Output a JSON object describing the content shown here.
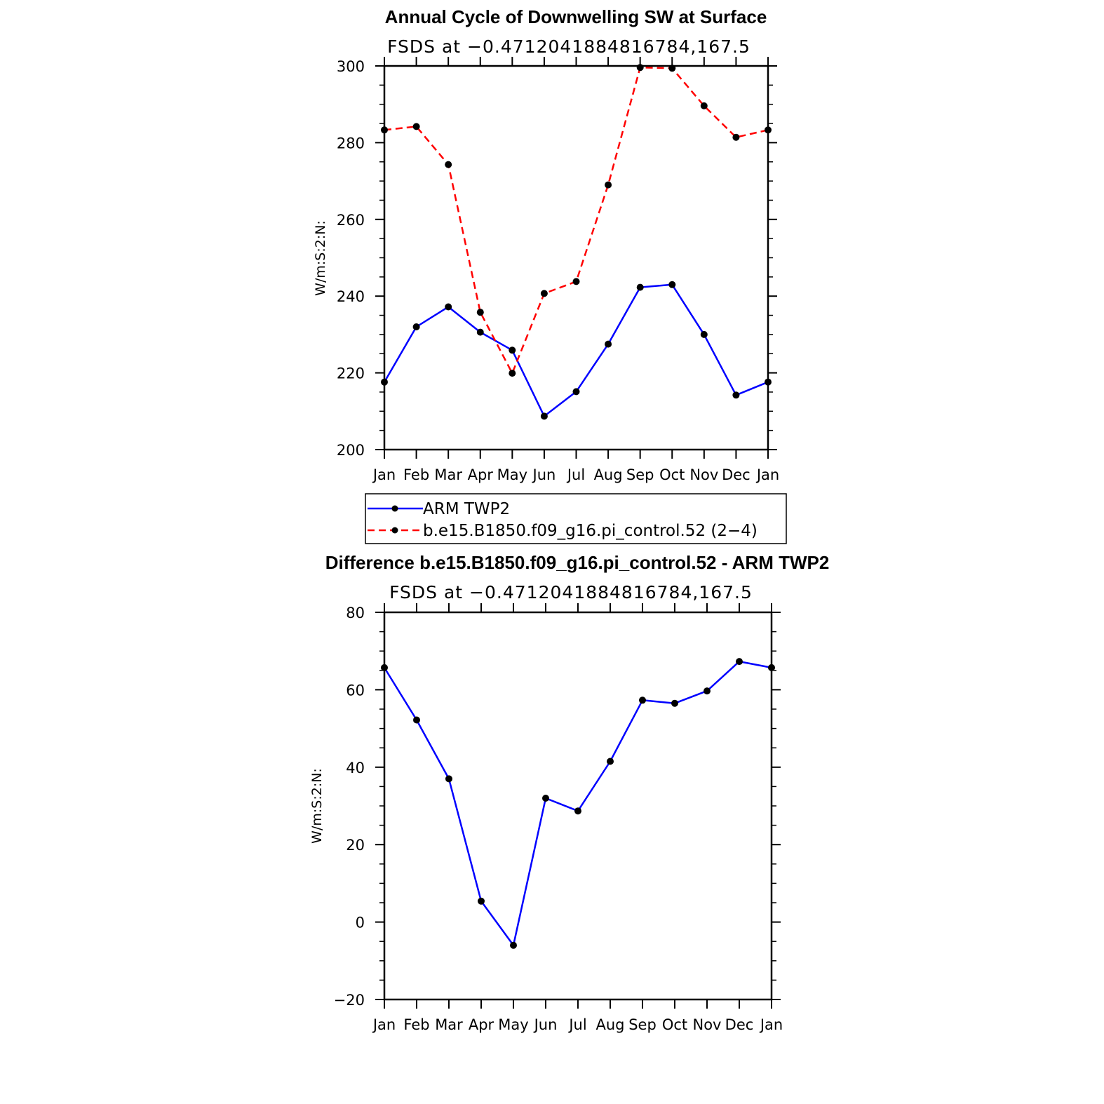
{
  "chart_data": [
    {
      "type": "line",
      "title": "Annual Cycle of Downwelling SW at Surface",
      "subtitle": "FSDS at −0.4712041884816784,167.5",
      "xlabel": "",
      "ylabel": "W/m:S:2:N:",
      "categories": [
        "Jan",
        "Feb",
        "Mar",
        "Apr",
        "May",
        "Jun",
        "Jul",
        "Aug",
        "Sep",
        "Oct",
        "Nov",
        "Dec",
        "Jan"
      ],
      "ylim": [
        200,
        300
      ],
      "yticks": [
        200,
        220,
        240,
        260,
        280,
        300
      ],
      "grid": false,
      "series": [
        {
          "name": "ARM TWP2",
          "color": "#0000ff",
          "style": "solid",
          "values": [
            217.6,
            232.0,
            237.2,
            230.6,
            225.9,
            208.7,
            215.1,
            227.5,
            242.3,
            243.0,
            230.0,
            214.2,
            217.6
          ]
        },
        {
          "name": "b.e15.B1850.f09_g16.pi_control.52 (2−4)",
          "color": "#ff0000",
          "style": "dashed",
          "values": [
            283.3,
            284.2,
            274.3,
            235.8,
            219.9,
            240.7,
            243.8,
            269.0,
            299.6,
            299.4,
            289.6,
            281.4,
            283.3
          ]
        }
      ],
      "legend": "bottom"
    },
    {
      "type": "line",
      "title": "Difference b.e15.B1850.f09_g16.pi_control.52 - ARM TWP2",
      "subtitle": "FSDS at −0.4712041884816784,167.5",
      "xlabel": "",
      "ylabel": "W/m:S:2:N:",
      "categories": [
        "Jan",
        "Feb",
        "Mar",
        "Apr",
        "May",
        "Jun",
        "Jul",
        "Aug",
        "Sep",
        "Oct",
        "Nov",
        "Dec",
        "Jan"
      ],
      "ylim": [
        -20,
        80
      ],
      "yticks": [
        -20,
        0,
        20,
        40,
        60,
        80
      ],
      "ytick_labels": [
        "−20",
        "0",
        "20",
        "40",
        "60",
        "80"
      ],
      "grid": false,
      "series": [
        {
          "color": "#0000ff",
          "style": "solid",
          "values": [
            65.7,
            52.2,
            37.0,
            5.4,
            -6.0,
            32.0,
            28.7,
            41.5,
            57.3,
            56.5,
            59.7,
            67.3,
            65.7
          ]
        }
      ]
    }
  ]
}
